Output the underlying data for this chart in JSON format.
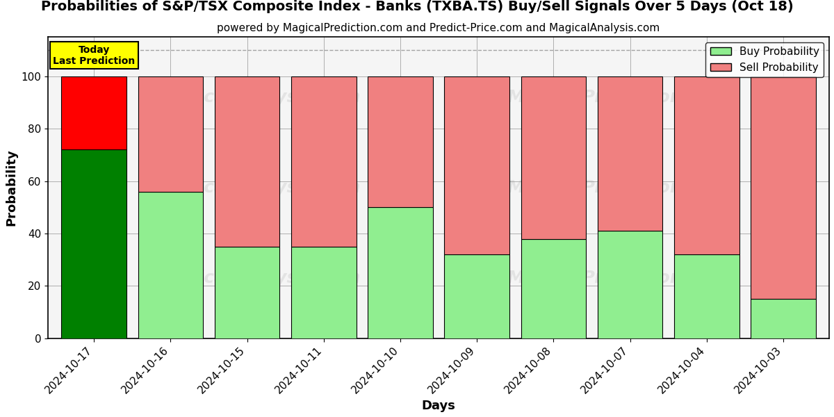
{
  "title": "Probabilities of S&P/TSX Composite Index - Banks (TXBA.TS) Buy/Sell Signals Over 5 Days (Oct 18)",
  "subtitle": "powered by MagicalPrediction.com and Predict-Price.com and MagicalAnalysis.com",
  "xlabel": "Days",
  "ylabel": "Probability",
  "dates": [
    "2024-10-17",
    "2024-10-16",
    "2024-10-15",
    "2024-10-11",
    "2024-10-10",
    "2024-10-09",
    "2024-10-08",
    "2024-10-07",
    "2024-10-04",
    "2024-10-03"
  ],
  "buy_probs": [
    72,
    56,
    35,
    35,
    50,
    32,
    38,
    41,
    32,
    15
  ],
  "sell_probs": [
    28,
    44,
    65,
    65,
    50,
    68,
    62,
    59,
    68,
    85
  ],
  "today_index": 0,
  "today_buy_color": "#008000",
  "today_sell_color": "#ff0000",
  "other_buy_color": "#90EE90",
  "other_sell_color": "#F08080",
  "today_label_bg": "#ffff00",
  "today_label_text": "Today\nLast Prediction",
  "bar_width": 0.85,
  "ylim": [
    0,
    115
  ],
  "yticks": [
    0,
    20,
    40,
    60,
    80,
    100
  ],
  "legend_buy_label": "Buy Probability",
  "legend_sell_label": "Sell Probability",
  "title_fontsize": 14,
  "subtitle_fontsize": 11,
  "axis_label_fontsize": 13,
  "tick_fontsize": 11,
  "legend_fontsize": 11,
  "dashed_line_y": 110,
  "watermark1": "MagicalAnalysis.com",
  "watermark2": "MagicalPrediction.com",
  "wm_fontsize": 18,
  "wm_alpha": 0.15,
  "bg_color": "#f5f5f5"
}
